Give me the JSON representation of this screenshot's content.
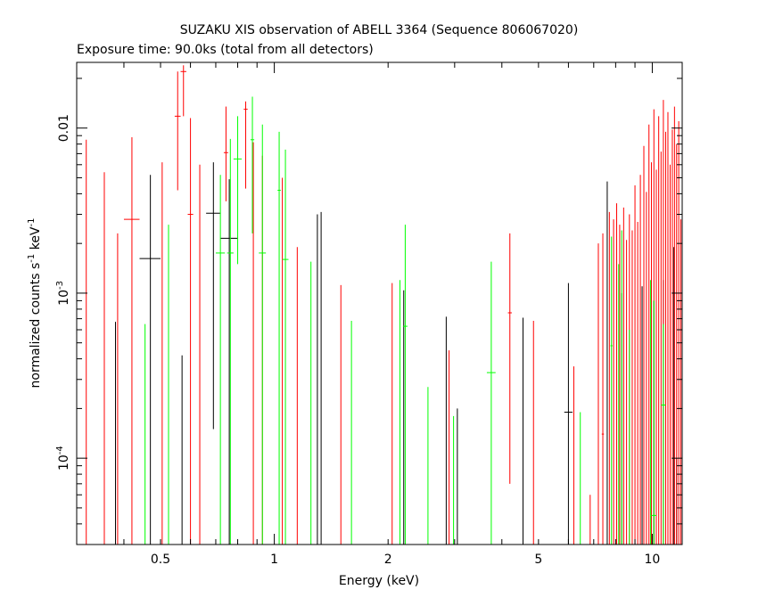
{
  "chart_data": {
    "type": "scatter",
    "title": "SUZAKU XIS observation of ABELL 3364 (Sequence 806067020)",
    "subtitle": "Exposure time: 90.0ks (total from all detectors)",
    "xlabel": "Energy (keV)",
    "ylabel": {
      "base": "normalized counts s",
      "sup1": "-1",
      "mid": " keV",
      "sup2": "-1"
    },
    "xscale": "log",
    "yscale": "log",
    "xlim": [
      0.3,
      12
    ],
    "ylim": [
      3e-05,
      0.025
    ],
    "grid": false,
    "x_tick_labels": [
      {
        "value": 0.5,
        "text": "0.5"
      },
      {
        "value": 1,
        "text": "1"
      },
      {
        "value": 2,
        "text": "2"
      },
      {
        "value": 5,
        "text": "5"
      },
      {
        "value": 10,
        "text": "10"
      }
    ],
    "y_tick_labels": [
      {
        "value": 0.0001,
        "base": "10",
        "exp": "-4"
      },
      {
        "value": 0.001,
        "base": "10",
        "exp": "-3"
      },
      {
        "value": 0.01,
        "base": "",
        "exp": "",
        "text": "0.01"
      }
    ],
    "series": [
      {
        "color": "#000000",
        "points": [
          {
            "x": 0.38,
            "lo": 3e-05,
            "hi": 0.00067,
            "y": null
          },
          {
            "x": 0.47,
            "y": 0.00162,
            "xlo": 0.44,
            "xhi": 0.5,
            "lo": 3e-05,
            "hi": 0.0052
          },
          {
            "x": 0.57,
            "lo": 3e-05,
            "hi": 0.00042,
            "y": null
          },
          {
            "x": 0.69,
            "y": 0.00305,
            "xlo": 0.66,
            "xhi": 0.72,
            "lo": 0.00015,
            "hi": 0.0062
          },
          {
            "x": 0.76,
            "y": 0.00215,
            "xlo": 0.72,
            "xhi": 0.8,
            "lo": 3e-05,
            "hi": 0.0049
          },
          {
            "x": 1.3,
            "lo": 3e-05,
            "hi": 0.003,
            "y": null
          },
          {
            "x": 1.33,
            "lo": 3e-05,
            "hi": 0.0031,
            "y": null
          },
          {
            "x": 2.2,
            "lo": 3e-05,
            "hi": 0.00104,
            "y": null
          },
          {
            "x": 2.85,
            "lo": 3e-05,
            "hi": 0.00072,
            "y": null
          },
          {
            "x": 3.05,
            "lo": 3e-05,
            "hi": 0.0002,
            "y": null
          },
          {
            "x": 4.55,
            "lo": 3e-05,
            "hi": 0.00071,
            "y": null
          },
          {
            "x": 6.0,
            "y": 0.00019,
            "xlo": 5.85,
            "xhi": 6.15,
            "lo": 3e-05,
            "hi": 0.00115
          },
          {
            "x": 7.6,
            "lo": 3e-05,
            "hi": 0.00475,
            "y": null
          },
          {
            "x": 8.3,
            "lo": 3e-05,
            "hi": 0.001,
            "y": null
          },
          {
            "x": 9.4,
            "lo": 3e-05,
            "hi": 0.0011,
            "y": null
          },
          {
            "x": 10.1,
            "lo": 3e-05,
            "hi": 0.0009,
            "y": null
          },
          {
            "x": 10.7,
            "lo": 3e-05,
            "hi": 0.0012,
            "y": null
          },
          {
            "x": 11.4,
            "lo": 3e-05,
            "hi": 0.0019,
            "y": null
          },
          {
            "x": 11.6,
            "lo": 3e-05,
            "hi": 0.0001,
            "y": null
          }
        ]
      },
      {
        "color": "#ff0000",
        "points": [
          {
            "x": 0.318,
            "lo": 3e-05,
            "hi": 0.0085,
            "y": null
          },
          {
            "x": 0.355,
            "lo": 3e-05,
            "hi": 0.0054,
            "y": null
          },
          {
            "x": 0.385,
            "lo": 3e-05,
            "hi": 0.0023,
            "y": null
          },
          {
            "x": 0.42,
            "y": 0.0028,
            "xlo": 0.4,
            "xhi": 0.44,
            "lo": 3e-05,
            "hi": 0.0088
          },
          {
            "x": 0.505,
            "lo": 3e-05,
            "hi": 0.0062,
            "y": null
          },
          {
            "x": 0.555,
            "y": 0.0118,
            "xlo": 0.545,
            "xhi": 0.565,
            "lo": 0.0042,
            "hi": 0.022
          },
          {
            "x": 0.575,
            "y": 0.022,
            "xlo": 0.565,
            "xhi": 0.585,
            "lo": 0.0118,
            "hi": 0.024
          },
          {
            "x": 0.6,
            "y": 0.003,
            "xlo": 0.59,
            "xhi": 0.61,
            "lo": 3e-05,
            "hi": 0.0115
          },
          {
            "x": 0.635,
            "lo": 3e-05,
            "hi": 0.006,
            "y": null
          },
          {
            "x": 0.745,
            "y": 0.0071,
            "xlo": 0.735,
            "xhi": 0.755,
            "lo": 0.0036,
            "hi": 0.0135
          },
          {
            "x": 0.84,
            "y": 0.013,
            "xlo": 0.83,
            "xhi": 0.85,
            "lo": 0.0043,
            "hi": 0.0145
          },
          {
            "x": 0.88,
            "lo": 3e-05,
            "hi": 0.0082,
            "y": null
          },
          {
            "x": 0.93,
            "lo": 3e-05,
            "hi": 0.0068,
            "y": null
          },
          {
            "x": 1.05,
            "lo": 3e-05,
            "hi": 0.005,
            "y": null
          },
          {
            "x": 1.15,
            "lo": 3e-05,
            "hi": 0.0019,
            "y": null
          },
          {
            "x": 1.5,
            "lo": 3e-05,
            "hi": 0.00112,
            "y": null
          },
          {
            "x": 2.05,
            "lo": 3e-05,
            "hi": 0.00115,
            "y": null
          },
          {
            "x": 2.9,
            "lo": 3e-05,
            "hi": 0.00045,
            "y": null
          },
          {
            "x": 4.2,
            "y": 0.00076,
            "xlo": 4.15,
            "xhi": 4.25,
            "lo": 7e-05,
            "hi": 0.0023
          },
          {
            "x": 4.85,
            "lo": 3e-05,
            "hi": 0.00068,
            "y": null
          },
          {
            "x": 6.2,
            "lo": 3e-05,
            "hi": 0.00036,
            "y": null
          },
          {
            "x": 6.85,
            "lo": 3e-05,
            "hi": 6e-05,
            "y": null
          },
          {
            "x": 7.2,
            "lo": 3e-05,
            "hi": 0.002,
            "y": null
          },
          {
            "x": 7.4,
            "y": 0.00014,
            "xlo": 7.35,
            "xhi": 7.45,
            "lo": 3e-05,
            "hi": 0.0023
          },
          {
            "x": 7.7,
            "lo": 3e-05,
            "hi": 0.0031,
            "y": null
          },
          {
            "x": 7.9,
            "lo": 3e-05,
            "hi": 0.0028,
            "y": null
          },
          {
            "x": 8.05,
            "lo": 3e-05,
            "hi": 0.0035,
            "y": null
          },
          {
            "x": 8.2,
            "lo": 3e-05,
            "hi": 0.0026,
            "y": null
          },
          {
            "x": 8.4,
            "lo": 3e-05,
            "hi": 0.0033,
            "y": null
          },
          {
            "x": 8.55,
            "lo": 3e-05,
            "hi": 0.0021,
            "y": null
          },
          {
            "x": 8.7,
            "lo": 3e-05,
            "hi": 0.003,
            "y": null
          },
          {
            "x": 8.85,
            "lo": 3e-05,
            "hi": 0.0024,
            "y": null
          },
          {
            "x": 9.0,
            "lo": 3e-05,
            "hi": 0.0045,
            "y": null
          },
          {
            "x": 9.15,
            "lo": 3e-05,
            "hi": 0.0027,
            "y": null
          },
          {
            "x": 9.3,
            "lo": 3e-05,
            "hi": 0.0052,
            "y": null
          },
          {
            "x": 9.5,
            "lo": 3e-05,
            "hi": 0.0078,
            "y": null
          },
          {
            "x": 9.65,
            "lo": 3e-05,
            "hi": 0.0041,
            "y": null
          },
          {
            "x": 9.8,
            "lo": 3e-05,
            "hi": 0.0105,
            "y": null
          },
          {
            "x": 9.95,
            "lo": 3e-05,
            "hi": 0.0062,
            "y": null
          },
          {
            "x": 10.1,
            "lo": 3e-05,
            "hi": 0.013,
            "y": null
          },
          {
            "x": 10.25,
            "lo": 3e-05,
            "hi": 0.0056,
            "y": null
          },
          {
            "x": 10.4,
            "lo": 3e-05,
            "hi": 0.0118,
            "y": null
          },
          {
            "x": 10.55,
            "lo": 3e-05,
            "hi": 0.0072,
            "y": null
          },
          {
            "x": 10.7,
            "lo": 3e-05,
            "hi": 0.0148,
            "y": null
          },
          {
            "x": 10.85,
            "lo": 3e-05,
            "hi": 0.0095,
            "y": null
          },
          {
            "x": 11.0,
            "lo": 3e-05,
            "hi": 0.0125,
            "y": null
          },
          {
            "x": 11.15,
            "lo": 3e-05,
            "hi": 0.006,
            "y": null
          },
          {
            "x": 11.3,
            "lo": 3e-05,
            "hi": 0.0098,
            "y": null
          },
          {
            "x": 11.45,
            "lo": 3e-05,
            "hi": 0.0135,
            "y": null
          },
          {
            "x": 11.6,
            "lo": 3e-05,
            "hi": 0.008,
            "y": null
          },
          {
            "x": 11.75,
            "lo": 3e-05,
            "hi": 0.011,
            "y": null
          },
          {
            "x": 11.9,
            "lo": 3e-05,
            "hi": 0.0028,
            "y": null
          }
        ]
      },
      {
        "color": "#00ff00",
        "points": [
          {
            "x": 0.455,
            "lo": 3e-05,
            "hi": 0.00065,
            "y": null
          },
          {
            "x": 0.525,
            "lo": 3e-05,
            "hi": 0.0026,
            "y": null
          },
          {
            "x": 0.72,
            "y": 0.00175,
            "xlo": 0.7,
            "xhi": 0.74,
            "lo": 3e-05,
            "hi": 0.0052
          },
          {
            "x": 0.765,
            "y": 0.00175,
            "xlo": 0.75,
            "xhi": 0.78,
            "lo": 3e-05,
            "hi": 0.0086
          },
          {
            "x": 0.8,
            "y": 0.0065,
            "xlo": 0.78,
            "xhi": 0.82,
            "lo": 0.0015,
            "hi": 0.0118
          },
          {
            "x": 0.875,
            "y": 0.0085,
            "xlo": 0.865,
            "xhi": 0.885,
            "lo": 0.0023,
            "hi": 0.0155
          },
          {
            "x": 0.93,
            "y": 0.00175,
            "xlo": 0.91,
            "xhi": 0.95,
            "lo": 3e-05,
            "hi": 0.0105
          },
          {
            "x": 1.03,
            "y": 0.0042,
            "xlo": 1.02,
            "xhi": 1.04,
            "lo": 3e-05,
            "hi": 0.0095
          },
          {
            "x": 1.07,
            "y": 0.0016,
            "xlo": 1.05,
            "xhi": 1.09,
            "lo": 3e-05,
            "hi": 0.0074
          },
          {
            "x": 1.25,
            "lo": 3e-05,
            "hi": 0.00155,
            "y": null
          },
          {
            "x": 1.6,
            "lo": 3e-05,
            "hi": 0.00068,
            "y": null
          },
          {
            "x": 2.15,
            "lo": 3e-05,
            "hi": 0.0012,
            "y": null
          },
          {
            "x": 2.22,
            "y": 0.00063,
            "xlo": 2.19,
            "xhi": 2.25,
            "lo": 3e-05,
            "hi": 0.0026
          },
          {
            "x": 2.55,
            "lo": 3e-05,
            "hi": 0.00027,
            "y": null
          },
          {
            "x": 2.98,
            "lo": 3e-05,
            "hi": 0.00018,
            "y": null
          },
          {
            "x": 3.75,
            "y": 0.00033,
            "xlo": 3.65,
            "xhi": 3.85,
            "lo": 3e-05,
            "hi": 0.00155
          },
          {
            "x": 6.45,
            "lo": 3e-05,
            "hi": 0.00019,
            "y": null
          },
          {
            "x": 7.8,
            "y": 0.00048,
            "xlo": 7.75,
            "xhi": 7.85,
            "lo": 3e-05,
            "hi": 0.0022
          },
          {
            "x": 8.15,
            "lo": 3e-05,
            "hi": 0.0015,
            "y": null
          },
          {
            "x": 8.3,
            "lo": 3e-05,
            "hi": 0.0024,
            "y": null
          },
          {
            "x": 8.7,
            "lo": 3e-05,
            "hi": 0.0006,
            "y": null
          },
          {
            "x": 9.9,
            "lo": 3e-05,
            "hi": 0.0012,
            "y": null
          },
          {
            "x": 10.1,
            "y": 4.5e-05,
            "xlo": 9.95,
            "xhi": 10.25,
            "lo": 3e-05,
            "hi": 0.0009
          },
          {
            "x": 10.7,
            "y": 0.00021,
            "xlo": 10.55,
            "xhi": 10.85,
            "lo": 3e-05,
            "hi": 0.00065
          }
        ]
      }
    ]
  }
}
